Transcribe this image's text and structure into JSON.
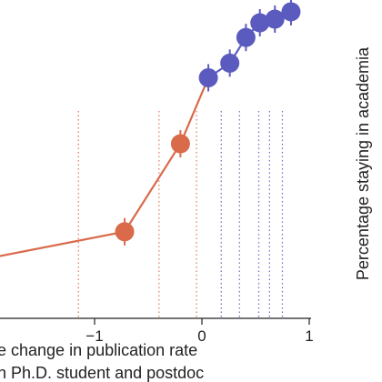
{
  "chart_data": {
    "type": "line",
    "xlabel_lines": [
      "e change in publication rate",
      "n Ph.D. student and postdoc"
    ],
    "ylabel": "Percentage staying in academia",
    "xlim": [
      -3.0,
      1.05
    ],
    "ylim": [
      0,
      100
    ],
    "x_ticks": [
      {
        "value": -1,
        "label": "−1"
      },
      {
        "value": 0,
        "label": "0"
      },
      {
        "value": 1,
        "label": "1"
      }
    ],
    "grid": "dotted vertical lines at bin edges",
    "bin_edges": [
      -1.15,
      -0.4,
      -0.05,
      0.18,
      0.35,
      0.53,
      0.63,
      0.75
    ],
    "segment_color": "#d96a4a",
    "series": [
      {
        "color": "#d96a4a",
        "points": [
          {
            "x": -3.0,
            "y": 28
          },
          {
            "x": -0.72,
            "y": 41
          },
          {
            "x": -0.2,
            "y": 65
          },
          {
            "x": 0.06,
            "y": 83
          }
        ],
        "marked_points": [
          {
            "x": -0.72,
            "y": 41
          },
          {
            "x": -0.2,
            "y": 65
          }
        ]
      },
      {
        "color": "#5b5bbf",
        "points": [
          {
            "x": 0.06,
            "y": 83
          },
          {
            "x": 0.26,
            "y": 87
          },
          {
            "x": 0.41,
            "y": 94
          },
          {
            "x": 0.54,
            "y": 98
          },
          {
            "x": 0.68,
            "y": 99
          },
          {
            "x": 0.83,
            "y": 101
          }
        ],
        "marked_points": [
          {
            "x": 0.06,
            "y": 83
          },
          {
            "x": 0.26,
            "y": 87
          },
          {
            "x": 0.41,
            "y": 94
          },
          {
            "x": 0.54,
            "y": 98
          },
          {
            "x": 0.68,
            "y": 99
          },
          {
            "x": 0.83,
            "y": 101
          }
        ]
      }
    ]
  }
}
